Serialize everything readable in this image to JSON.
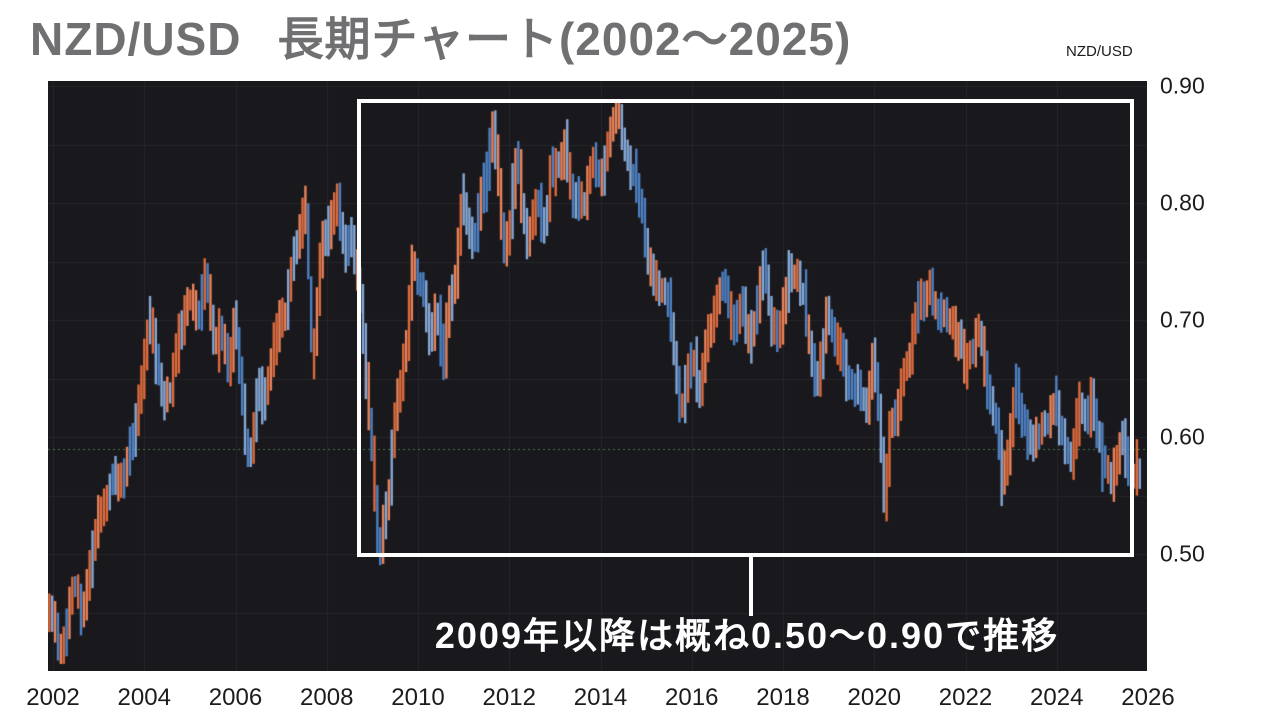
{
  "header": {
    "title_pair": "NZD/USD",
    "title_rest": "長期チャート(2002～2025)",
    "corner_label": "NZD/USD"
  },
  "chart_data": {
    "type": "ohlc_bar",
    "title": "NZD/USD 長期チャート(2002～2025)",
    "xlabel": "",
    "ylabel": "NZD/USD",
    "xlim": [
      2001.9,
      2026.0
    ],
    "ylim": [
      0.4,
      0.905
    ],
    "x_ticks": [
      2002,
      2004,
      2006,
      2008,
      2010,
      2012,
      2014,
      2016,
      2018,
      2020,
      2022,
      2024,
      2026
    ],
    "y_ticks": [
      "0.90",
      "0.80",
      "0.70",
      "0.60",
      "0.50"
    ],
    "y_tick_values": [
      0.9,
      0.8,
      0.7,
      0.6,
      0.5
    ],
    "grid": {
      "x_step_years": 2,
      "y_step": 0.05
    },
    "reference_line": {
      "value": 0.59,
      "style": "dotted",
      "color": "#3f7b44"
    },
    "highlight_box": {
      "x0": 2008.66,
      "x1": 2025.67,
      "y0": 0.499,
      "y1": 0.887
    },
    "callout": {
      "x": 2017.3,
      "text": "2009年以降は概ね0.50～0.90で推移"
    },
    "anchors": [
      [
        2001.92,
        0.455
      ],
      [
        2002.05,
        0.435
      ],
      [
        2002.17,
        0.413
      ],
      [
        2002.45,
        0.465
      ],
      [
        2002.6,
        0.452
      ],
      [
        2002.75,
        0.47
      ],
      [
        2003.0,
        0.525
      ],
      [
        2003.3,
        0.56
      ],
      [
        2003.55,
        0.565
      ],
      [
        2003.75,
        0.6
      ],
      [
        2004.1,
        0.7
      ],
      [
        2004.4,
        0.634
      ],
      [
        2004.65,
        0.66
      ],
      [
        2004.97,
        0.727
      ],
      [
        2005.15,
        0.7
      ],
      [
        2005.37,
        0.748
      ],
      [
        2005.55,
        0.677
      ],
      [
        2005.66,
        0.713
      ],
      [
        2005.88,
        0.674
      ],
      [
        2005.95,
        0.697
      ],
      [
        2006.1,
        0.64
      ],
      [
        2006.27,
        0.6
      ],
      [
        2006.54,
        0.646
      ],
      [
        2006.6,
        0.625
      ],
      [
        2006.8,
        0.67
      ],
      [
        2007.05,
        0.694
      ],
      [
        2007.3,
        0.745
      ],
      [
        2007.56,
        0.805
      ],
      [
        2007.67,
        0.667
      ],
      [
        2007.8,
        0.72
      ],
      [
        2007.95,
        0.77
      ],
      [
        2008.1,
        0.79
      ],
      [
        2008.22,
        0.818
      ],
      [
        2008.44,
        0.745
      ],
      [
        2008.52,
        0.777
      ],
      [
        2008.65,
        0.74
      ],
      [
        2008.8,
        0.68
      ],
      [
        2008.95,
        0.6
      ],
      [
        2009.05,
        0.53
      ],
      [
        2009.15,
        0.493
      ],
      [
        2009.3,
        0.53
      ],
      [
        2009.45,
        0.59
      ],
      [
        2009.62,
        0.645
      ],
      [
        2009.87,
        0.755
      ],
      [
        2010.05,
        0.72
      ],
      [
        2010.27,
        0.69
      ],
      [
        2010.4,
        0.715
      ],
      [
        2010.55,
        0.665
      ],
      [
        2010.75,
        0.72
      ],
      [
        2010.95,
        0.785
      ],
      [
        2011.15,
        0.755
      ],
      [
        2011.35,
        0.8
      ],
      [
        2011.5,
        0.83
      ],
      [
        2011.62,
        0.862
      ],
      [
        2011.72,
        0.83
      ],
      [
        2011.85,
        0.755
      ],
      [
        2012.0,
        0.78
      ],
      [
        2012.15,
        0.835
      ],
      [
        2012.4,
        0.772
      ],
      [
        2012.6,
        0.81
      ],
      [
        2012.75,
        0.79
      ],
      [
        2012.95,
        0.83
      ],
      [
        2013.25,
        0.858
      ],
      [
        2013.45,
        0.8
      ],
      [
        2013.6,
        0.777
      ],
      [
        2013.85,
        0.838
      ],
      [
        2014.0,
        0.815
      ],
      [
        2014.15,
        0.845
      ],
      [
        2014.35,
        0.868
      ],
      [
        2014.5,
        0.845
      ],
      [
        2014.85,
        0.79
      ],
      [
        2015.05,
        0.755
      ],
      [
        2015.3,
        0.72
      ],
      [
        2015.5,
        0.7
      ],
      [
        2015.75,
        0.635
      ],
      [
        2015.95,
        0.67
      ],
      [
        2016.12,
        0.645
      ],
      [
        2016.35,
        0.69
      ],
      [
        2016.55,
        0.715
      ],
      [
        2016.72,
        0.738
      ],
      [
        2016.95,
        0.7
      ],
      [
        2017.1,
        0.72
      ],
      [
        2017.28,
        0.684
      ],
      [
        2017.45,
        0.73
      ],
      [
        2017.6,
        0.742
      ],
      [
        2017.8,
        0.7
      ],
      [
        2017.95,
        0.682
      ],
      [
        2018.15,
        0.744
      ],
      [
        2018.35,
        0.72
      ],
      [
        2018.5,
        0.69
      ],
      [
        2018.74,
        0.646
      ],
      [
        2018.98,
        0.692
      ],
      [
        2019.15,
        0.68
      ],
      [
        2019.35,
        0.665
      ],
      [
        2019.55,
        0.655
      ],
      [
        2019.8,
        0.625
      ],
      [
        2019.95,
        0.655
      ],
      [
        2020.05,
        0.66
      ],
      [
        2020.22,
        0.553
      ],
      [
        2020.35,
        0.6
      ],
      [
        2020.5,
        0.62
      ],
      [
        2020.65,
        0.655
      ],
      [
        2020.8,
        0.66
      ],
      [
        2021.0,
        0.72
      ],
      [
        2021.2,
        0.745
      ],
      [
        2021.4,
        0.7
      ],
      [
        2021.55,
        0.715
      ],
      [
        2021.7,
        0.695
      ],
      [
        2021.88,
        0.69
      ],
      [
        2022.05,
        0.675
      ],
      [
        2022.3,
        0.7
      ],
      [
        2022.5,
        0.63
      ],
      [
        2022.65,
        0.62
      ],
      [
        2022.82,
        0.556
      ],
      [
        2023.1,
        0.65
      ],
      [
        2023.3,
        0.62
      ],
      [
        2023.55,
        0.59
      ],
      [
        2023.75,
        0.608
      ],
      [
        2024.0,
        0.625
      ],
      [
        2024.3,
        0.59
      ],
      [
        2024.5,
        0.615
      ],
      [
        2024.68,
        0.625
      ],
      [
        2024.85,
        0.61
      ],
      [
        2025.0,
        0.575
      ],
      [
        2025.18,
        0.553
      ],
      [
        2025.3,
        0.575
      ],
      [
        2025.45,
        0.603
      ],
      [
        2025.6,
        0.582
      ],
      [
        2025.82,
        0.566
      ]
    ],
    "noise": {
      "seed": 11,
      "amp_fast": 0.013,
      "amp_med": 0.009,
      "amp_slow": 0.006,
      "jitter": 0.006,
      "bar_half_min": 0.008,
      "bar_half_rand": 0.009,
      "spike_prob": 0.1,
      "flip_prob": 0.25,
      "bars": 380,
      "max_span": 0.065
    },
    "colors": {
      "background": "#19181c",
      "grid": "#26262a",
      "up": [
        "#dd6a3c",
        "#e8835a"
      ],
      "down": [
        "#4d80c2",
        "#85a8d6"
      ],
      "axis_text": "#1c1c1c",
      "title_text": "#707072",
      "annotation_text": "#ffffff"
    }
  }
}
